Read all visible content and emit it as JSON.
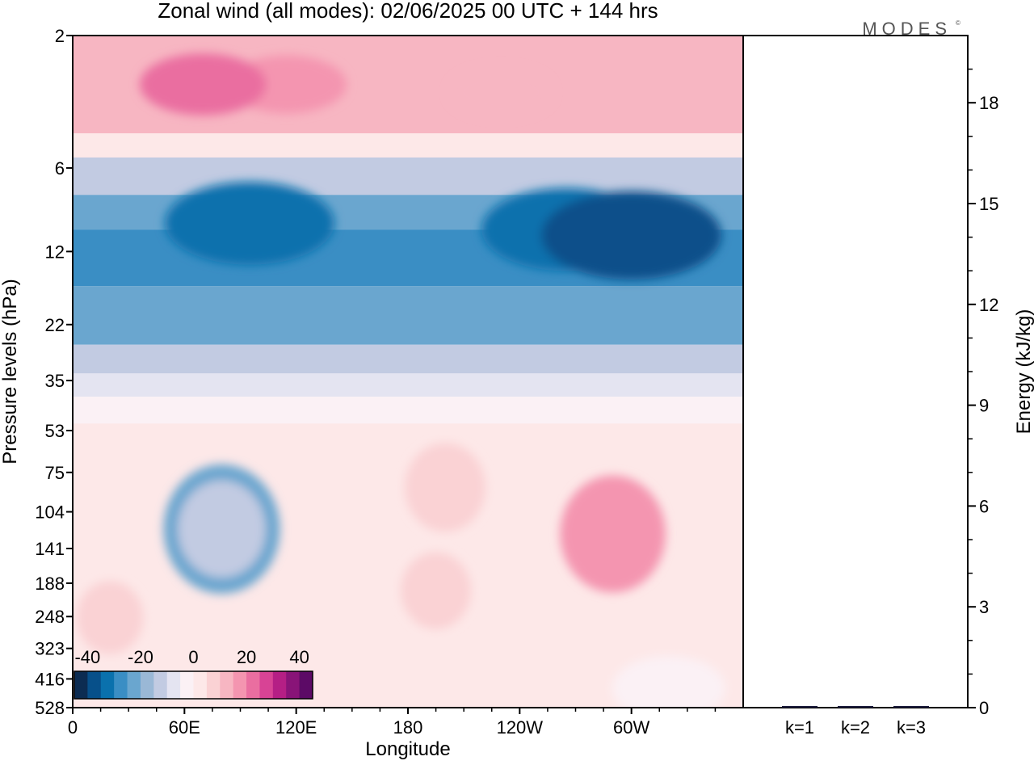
{
  "chart_data": {
    "type": "heatmap",
    "title": "Zonal wind (all modes):  02/06/2025  00 UTC  + 144 hrs",
    "watermark": "MODES",
    "xlabel": "Longitude",
    "ylabel": "Pressure levels (hPa)",
    "y2label": "Energy (kJ/kg)",
    "x_ticks": [
      "0",
      "60E",
      "120E",
      "180",
      "120W",
      "60W"
    ],
    "y_ticks": [
      "2",
      "6",
      "12",
      "22",
      "35",
      "53",
      "75",
      "104",
      "141",
      "188",
      "248",
      "323",
      "416",
      "528"
    ],
    "y2_ticks": [
      "0",
      "3",
      "6",
      "9",
      "12",
      "15",
      "18"
    ],
    "y2lim": [
      0,
      20
    ],
    "y_scale": "log-pressure (top = 2 hPa, bottom = 528 hPa)",
    "colorbar": {
      "tick_labels": [
        "-40",
        "-20",
        "0",
        "20",
        "40"
      ],
      "colors": [
        "#0c2c52",
        "#07508a",
        "#0a71ad",
        "#3a8ec4",
        "#6aa6cf",
        "#9ab8d6",
        "#c2cbe2",
        "#e4e4f1",
        "#fbf1f5",
        "#fde8e8",
        "#fad2d4",
        "#f7b6c2",
        "#f495b0",
        "#ea6ea0",
        "#d84395",
        "#b51f85",
        "#891478",
        "#5c0a66"
      ]
    },
    "contour_levels": [
      -40,
      -35,
      -30,
      -25,
      -20,
      -15,
      -10,
      -5,
      0,
      5,
      10,
      15,
      20,
      25,
      30,
      35,
      40
    ],
    "grid": false,
    "energy_bars": {
      "categories": [
        "k=1",
        "k=2",
        "k=3"
      ],
      "values": [
        0.02,
        0.01,
        0.01
      ]
    },
    "bands": [
      {
        "p_from": 2,
        "p_to": 4.5,
        "u": 12
      },
      {
        "p_from": 4.5,
        "p_to": 5.5,
        "u": 2
      },
      {
        "p_from": 5.5,
        "p_to": 7.5,
        "u": -10
      },
      {
        "p_from": 7.5,
        "p_to": 10,
        "u": -24
      },
      {
        "p_from": 10,
        "p_to": 16,
        "u": -29
      },
      {
        "p_from": 16,
        "p_to": 26,
        "u": -20
      },
      {
        "p_from": 26,
        "p_to": 33,
        "u": -12
      },
      {
        "p_from": 33,
        "p_to": 40,
        "u": -6
      },
      {
        "p_from": 40,
        "p_to": 50,
        "u": -1
      },
      {
        "p_from": 50,
        "p_to": 528,
        "u": 3
      }
    ],
    "features": [
      {
        "lon": 95,
        "p": 9.5,
        "u": -34
      },
      {
        "lon": 265,
        "p": 10,
        "u": -34
      },
      {
        "lon": 300,
        "p": 10.5,
        "u": -37
      },
      {
        "lon": 80,
        "p": 120,
        "u": -20
      },
      {
        "lon": 80,
        "p": 120,
        "u": -12
      },
      {
        "lon": 200,
        "p": 85,
        "u": 10
      },
      {
        "lon": 195,
        "p": 200,
        "u": 7
      },
      {
        "lon": 290,
        "p": 120,
        "u": 12
      },
      {
        "lon": 290,
        "p": 125,
        "u": 17
      },
      {
        "lon": 115,
        "p": 3,
        "u": 20
      },
      {
        "lon": 70,
        "p": 3,
        "u": 22
      },
      {
        "lon": 230,
        "p": 3.2,
        "u": 15
      },
      {
        "lon": 320,
        "p": 450,
        "u": -4
      },
      {
        "lon": 20,
        "p": 250,
        "u": 6
      }
    ]
  }
}
